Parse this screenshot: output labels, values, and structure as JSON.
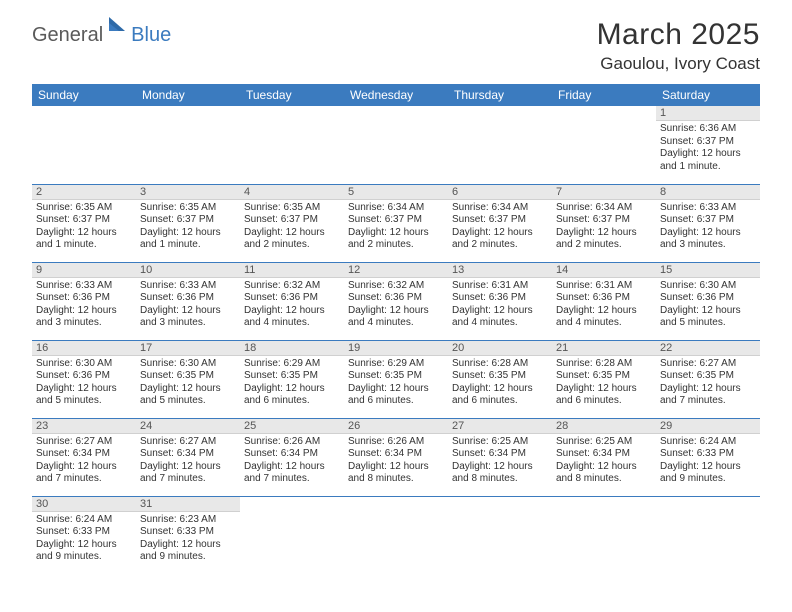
{
  "logo": {
    "text1": "General",
    "text2": "Blue"
  },
  "title": "March 2025",
  "location": "Gaoulou, Ivory Coast",
  "colors": {
    "header_bg": "#3b7bbf",
    "header_text": "#ffffff",
    "daynum_bg": "#e8e8e8",
    "row_border": "#3b7bbf",
    "body_text": "#333333",
    "logo_general": "#5a5a5a",
    "logo_blue": "#3b7bbf"
  },
  "weekdays": [
    "Sunday",
    "Monday",
    "Tuesday",
    "Wednesday",
    "Thursday",
    "Friday",
    "Saturday"
  ],
  "weeks": [
    [
      null,
      null,
      null,
      null,
      null,
      null,
      {
        "n": "1",
        "sunrise": "Sunrise: 6:36 AM",
        "sunset": "Sunset: 6:37 PM",
        "daylight": "Daylight: 12 hours and 1 minute."
      }
    ],
    [
      {
        "n": "2",
        "sunrise": "Sunrise: 6:35 AM",
        "sunset": "Sunset: 6:37 PM",
        "daylight": "Daylight: 12 hours and 1 minute."
      },
      {
        "n": "3",
        "sunrise": "Sunrise: 6:35 AM",
        "sunset": "Sunset: 6:37 PM",
        "daylight": "Daylight: 12 hours and 1 minute."
      },
      {
        "n": "4",
        "sunrise": "Sunrise: 6:35 AM",
        "sunset": "Sunset: 6:37 PM",
        "daylight": "Daylight: 12 hours and 2 minutes."
      },
      {
        "n": "5",
        "sunrise": "Sunrise: 6:34 AM",
        "sunset": "Sunset: 6:37 PM",
        "daylight": "Daylight: 12 hours and 2 minutes."
      },
      {
        "n": "6",
        "sunrise": "Sunrise: 6:34 AM",
        "sunset": "Sunset: 6:37 PM",
        "daylight": "Daylight: 12 hours and 2 minutes."
      },
      {
        "n": "7",
        "sunrise": "Sunrise: 6:34 AM",
        "sunset": "Sunset: 6:37 PM",
        "daylight": "Daylight: 12 hours and 2 minutes."
      },
      {
        "n": "8",
        "sunrise": "Sunrise: 6:33 AM",
        "sunset": "Sunset: 6:37 PM",
        "daylight": "Daylight: 12 hours and 3 minutes."
      }
    ],
    [
      {
        "n": "9",
        "sunrise": "Sunrise: 6:33 AM",
        "sunset": "Sunset: 6:36 PM",
        "daylight": "Daylight: 12 hours and 3 minutes."
      },
      {
        "n": "10",
        "sunrise": "Sunrise: 6:33 AM",
        "sunset": "Sunset: 6:36 PM",
        "daylight": "Daylight: 12 hours and 3 minutes."
      },
      {
        "n": "11",
        "sunrise": "Sunrise: 6:32 AM",
        "sunset": "Sunset: 6:36 PM",
        "daylight": "Daylight: 12 hours and 4 minutes."
      },
      {
        "n": "12",
        "sunrise": "Sunrise: 6:32 AM",
        "sunset": "Sunset: 6:36 PM",
        "daylight": "Daylight: 12 hours and 4 minutes."
      },
      {
        "n": "13",
        "sunrise": "Sunrise: 6:31 AM",
        "sunset": "Sunset: 6:36 PM",
        "daylight": "Daylight: 12 hours and 4 minutes."
      },
      {
        "n": "14",
        "sunrise": "Sunrise: 6:31 AM",
        "sunset": "Sunset: 6:36 PM",
        "daylight": "Daylight: 12 hours and 4 minutes."
      },
      {
        "n": "15",
        "sunrise": "Sunrise: 6:30 AM",
        "sunset": "Sunset: 6:36 PM",
        "daylight": "Daylight: 12 hours and 5 minutes."
      }
    ],
    [
      {
        "n": "16",
        "sunrise": "Sunrise: 6:30 AM",
        "sunset": "Sunset: 6:36 PM",
        "daylight": "Daylight: 12 hours and 5 minutes."
      },
      {
        "n": "17",
        "sunrise": "Sunrise: 6:30 AM",
        "sunset": "Sunset: 6:35 PM",
        "daylight": "Daylight: 12 hours and 5 minutes."
      },
      {
        "n": "18",
        "sunrise": "Sunrise: 6:29 AM",
        "sunset": "Sunset: 6:35 PM",
        "daylight": "Daylight: 12 hours and 6 minutes."
      },
      {
        "n": "19",
        "sunrise": "Sunrise: 6:29 AM",
        "sunset": "Sunset: 6:35 PM",
        "daylight": "Daylight: 12 hours and 6 minutes."
      },
      {
        "n": "20",
        "sunrise": "Sunrise: 6:28 AM",
        "sunset": "Sunset: 6:35 PM",
        "daylight": "Daylight: 12 hours and 6 minutes."
      },
      {
        "n": "21",
        "sunrise": "Sunrise: 6:28 AM",
        "sunset": "Sunset: 6:35 PM",
        "daylight": "Daylight: 12 hours and 6 minutes."
      },
      {
        "n": "22",
        "sunrise": "Sunrise: 6:27 AM",
        "sunset": "Sunset: 6:35 PM",
        "daylight": "Daylight: 12 hours and 7 minutes."
      }
    ],
    [
      {
        "n": "23",
        "sunrise": "Sunrise: 6:27 AM",
        "sunset": "Sunset: 6:34 PM",
        "daylight": "Daylight: 12 hours and 7 minutes."
      },
      {
        "n": "24",
        "sunrise": "Sunrise: 6:27 AM",
        "sunset": "Sunset: 6:34 PM",
        "daylight": "Daylight: 12 hours and 7 minutes."
      },
      {
        "n": "25",
        "sunrise": "Sunrise: 6:26 AM",
        "sunset": "Sunset: 6:34 PM",
        "daylight": "Daylight: 12 hours and 7 minutes."
      },
      {
        "n": "26",
        "sunrise": "Sunrise: 6:26 AM",
        "sunset": "Sunset: 6:34 PM",
        "daylight": "Daylight: 12 hours and 8 minutes."
      },
      {
        "n": "27",
        "sunrise": "Sunrise: 6:25 AM",
        "sunset": "Sunset: 6:34 PM",
        "daylight": "Daylight: 12 hours and 8 minutes."
      },
      {
        "n": "28",
        "sunrise": "Sunrise: 6:25 AM",
        "sunset": "Sunset: 6:34 PM",
        "daylight": "Daylight: 12 hours and 8 minutes."
      },
      {
        "n": "29",
        "sunrise": "Sunrise: 6:24 AM",
        "sunset": "Sunset: 6:33 PM",
        "daylight": "Daylight: 12 hours and 9 minutes."
      }
    ],
    [
      {
        "n": "30",
        "sunrise": "Sunrise: 6:24 AM",
        "sunset": "Sunset: 6:33 PM",
        "daylight": "Daylight: 12 hours and 9 minutes."
      },
      {
        "n": "31",
        "sunrise": "Sunrise: 6:23 AM",
        "sunset": "Sunset: 6:33 PM",
        "daylight": "Daylight: 12 hours and 9 minutes."
      },
      null,
      null,
      null,
      null,
      null
    ]
  ]
}
